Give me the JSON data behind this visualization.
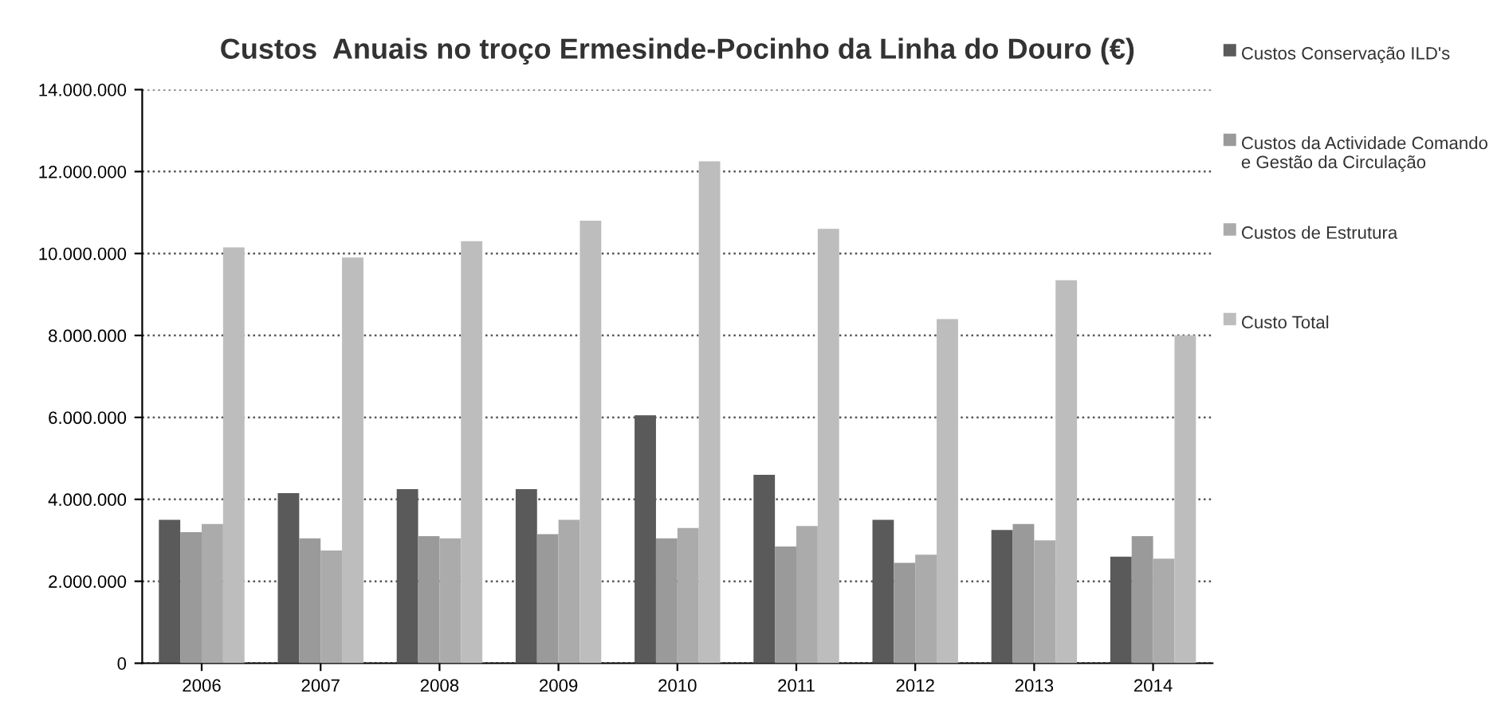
{
  "chart_data": {
    "type": "bar",
    "title": "Custos  Anuais no troço Ermesinde-Pocinho da Linha do Douro (€)",
    "categories": [
      "2006",
      "2007",
      "2008",
      "2009",
      "2010",
      "2011",
      "2012",
      "2013",
      "2014"
    ],
    "series": [
      {
        "name": "Custos Conservação ILD's",
        "color": "#5a5a5a",
        "values": [
          3500000,
          4150000,
          4250000,
          4250000,
          6050000,
          4600000,
          3500000,
          3250000,
          2600000
        ]
      },
      {
        "name": "Custos da Actividade Comando e Gestão da Circulação",
        "color": "#9a9a9a",
        "values": [
          3200000,
          3050000,
          3100000,
          3150000,
          3050000,
          2850000,
          2450000,
          3400000,
          3100000
        ]
      },
      {
        "name": "Custos de Estrutura",
        "color": "#ababab",
        "values": [
          3400000,
          2750000,
          3050000,
          3500000,
          3300000,
          3350000,
          2650000,
          3000000,
          2550000
        ]
      },
      {
        "name": "Custo Total",
        "color": "#bdbdbd",
        "values": [
          10150000,
          9900000,
          10300000,
          10800000,
          12250000,
          10600000,
          8400000,
          9350000,
          8000000
        ]
      }
    ],
    "ylim": [
      0,
      14000000
    ],
    "yticks": [
      {
        "value": 0,
        "label": "0"
      },
      {
        "value": 2000000,
        "label": "2.000.000"
      },
      {
        "value": 4000000,
        "label": "4.000.000"
      },
      {
        "value": 6000000,
        "label": "6.000.000"
      },
      {
        "value": 8000000,
        "label": "8.000.000"
      },
      {
        "value": 10000000,
        "label": "10.000.000"
      },
      {
        "value": 12000000,
        "label": "12.000.000"
      },
      {
        "value": 14000000,
        "label": "14.000.000"
      }
    ],
    "grid": "y",
    "legend": "right"
  }
}
